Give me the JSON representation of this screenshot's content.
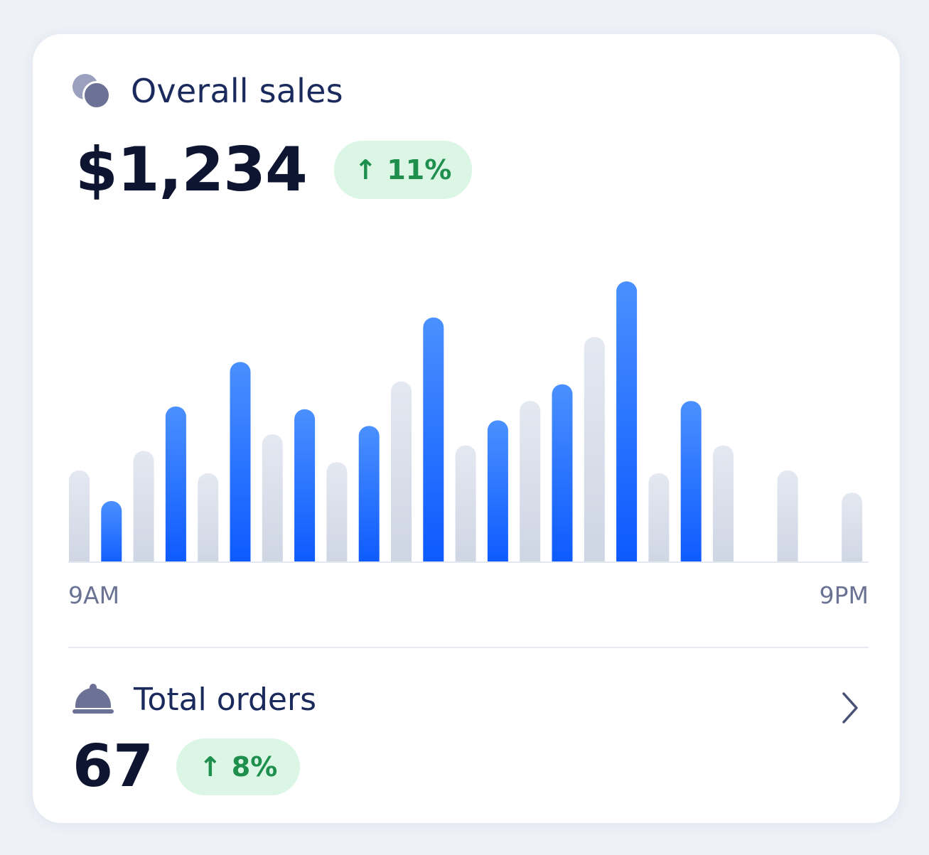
{
  "sales": {
    "icon": "coins-icon",
    "title": "Overall sales",
    "amount": "$1,234",
    "change": "11%",
    "change_icon": "arrow-up-icon"
  },
  "orders": {
    "icon": "cloche-icon",
    "title": "Total orders",
    "count": "67",
    "change": "8%",
    "change_icon": "arrow-up-icon",
    "action_icon": "chevron-right-icon"
  },
  "colors": {
    "highlight_bar": "#1f67ff",
    "muted_bar": "#d8dde9",
    "positive": "#1f8f4e",
    "positive_bg": "#dcf6e5"
  },
  "chart_data": {
    "type": "bar",
    "x_start_label": "9AM",
    "x_end_label": "9PM",
    "values": [
      33,
      22,
      40,
      56,
      32,
      72,
      46,
      55,
      36,
      49,
      65,
      88,
      42,
      51,
      58,
      64,
      81,
      101,
      32,
      58,
      42,
      0,
      33,
      0,
      25
    ],
    "highlighted": [
      false,
      true,
      false,
      true,
      false,
      true,
      false,
      true,
      false,
      true,
      false,
      true,
      false,
      true,
      false,
      true,
      false,
      true,
      false,
      true,
      false,
      false,
      false,
      false,
      false
    ],
    "ylim": [
      0,
      101
    ]
  }
}
